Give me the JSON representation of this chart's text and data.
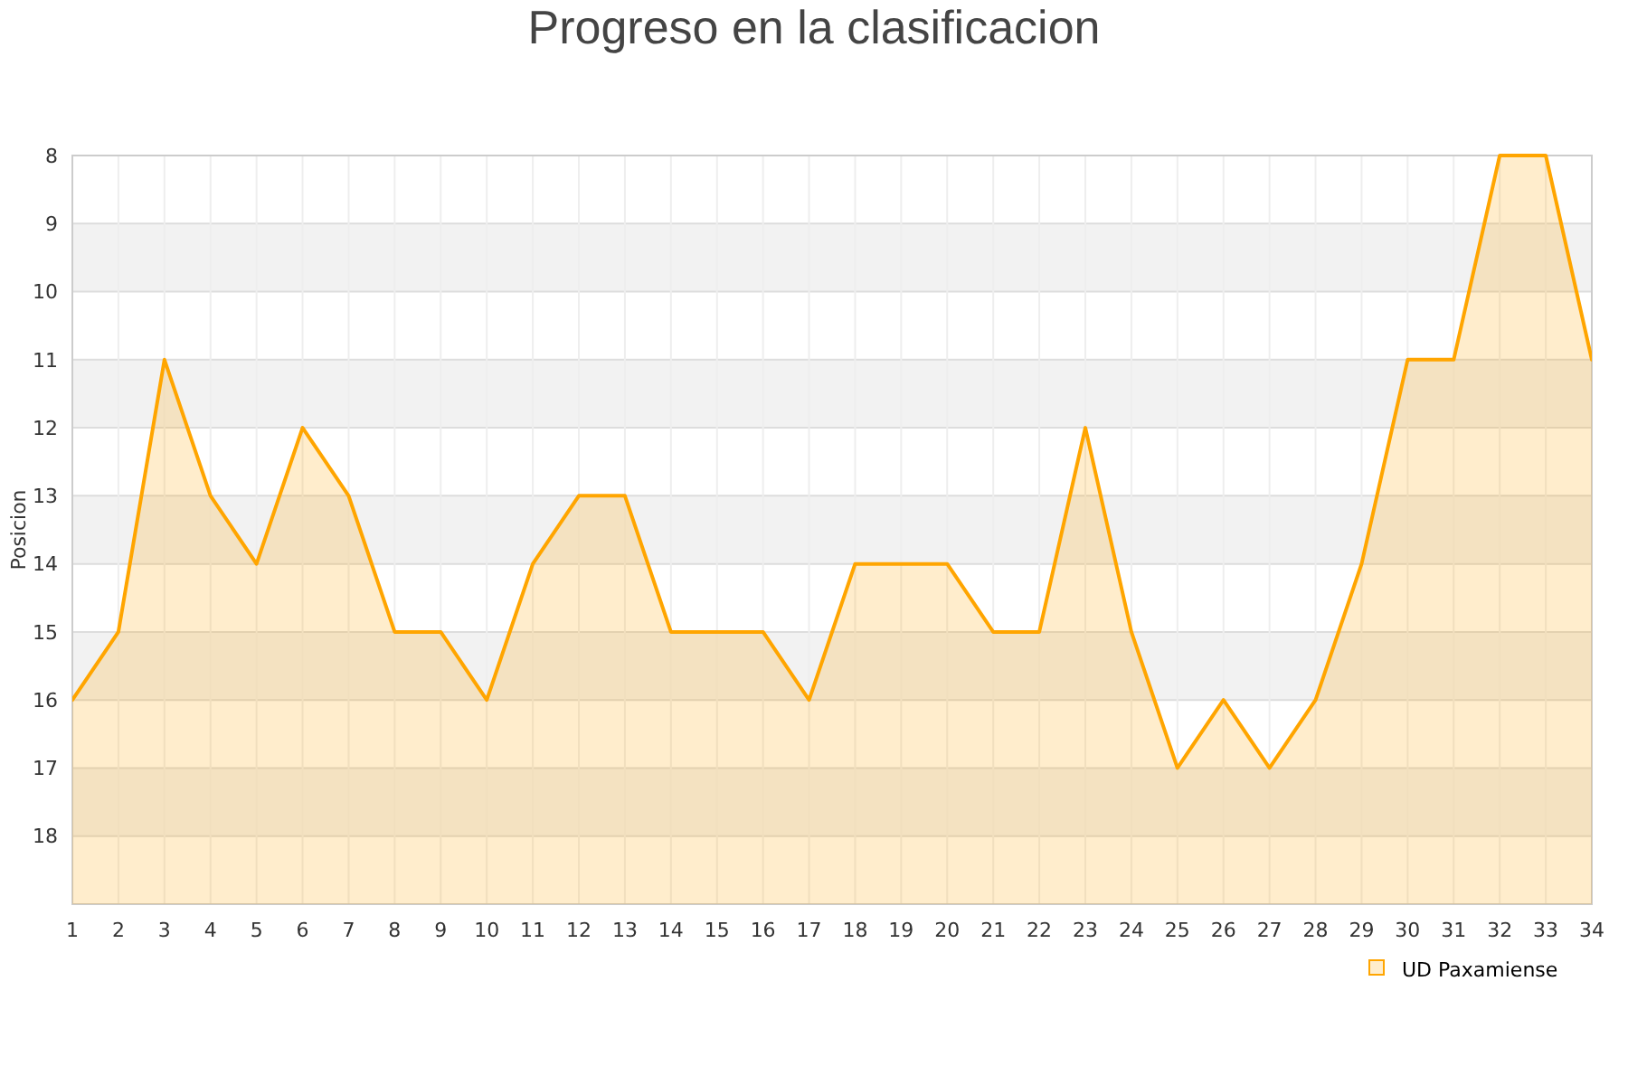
{
  "chart_data": {
    "type": "area",
    "title": "Progreso en la clasificacion",
    "ylabel": "Posicion",
    "x": [
      1,
      2,
      3,
      4,
      5,
      6,
      7,
      8,
      9,
      10,
      11,
      12,
      13,
      14,
      15,
      16,
      17,
      18,
      19,
      20,
      21,
      22,
      23,
      24,
      25,
      26,
      27,
      28,
      29,
      30,
      31,
      32,
      33,
      34
    ],
    "series": [
      {
        "name": "UD Paxamiense",
        "color": "#ffa500",
        "values": [
          16,
          15,
          11,
          13,
          14,
          12,
          13,
          15,
          15,
          16,
          14,
          13,
          13,
          15,
          15,
          15,
          16,
          14,
          14,
          14,
          15,
          15,
          12,
          15,
          17,
          16,
          17,
          16,
          14,
          11,
          11,
          8,
          8,
          11
        ]
      }
    ],
    "xlim": [
      1,
      34
    ],
    "xticks": [
      1,
      2,
      3,
      4,
      5,
      6,
      7,
      8,
      9,
      10,
      11,
      12,
      13,
      14,
      15,
      16,
      17,
      18,
      19,
      20,
      21,
      22,
      23,
      24,
      25,
      26,
      27,
      28,
      29,
      30,
      31,
      32,
      33,
      34
    ],
    "ylim": [
      19,
      8
    ],
    "yticks": [
      8,
      9,
      10,
      11,
      12,
      13,
      14,
      15,
      16,
      17,
      18
    ],
    "grid": true,
    "legend": "bottom right"
  }
}
